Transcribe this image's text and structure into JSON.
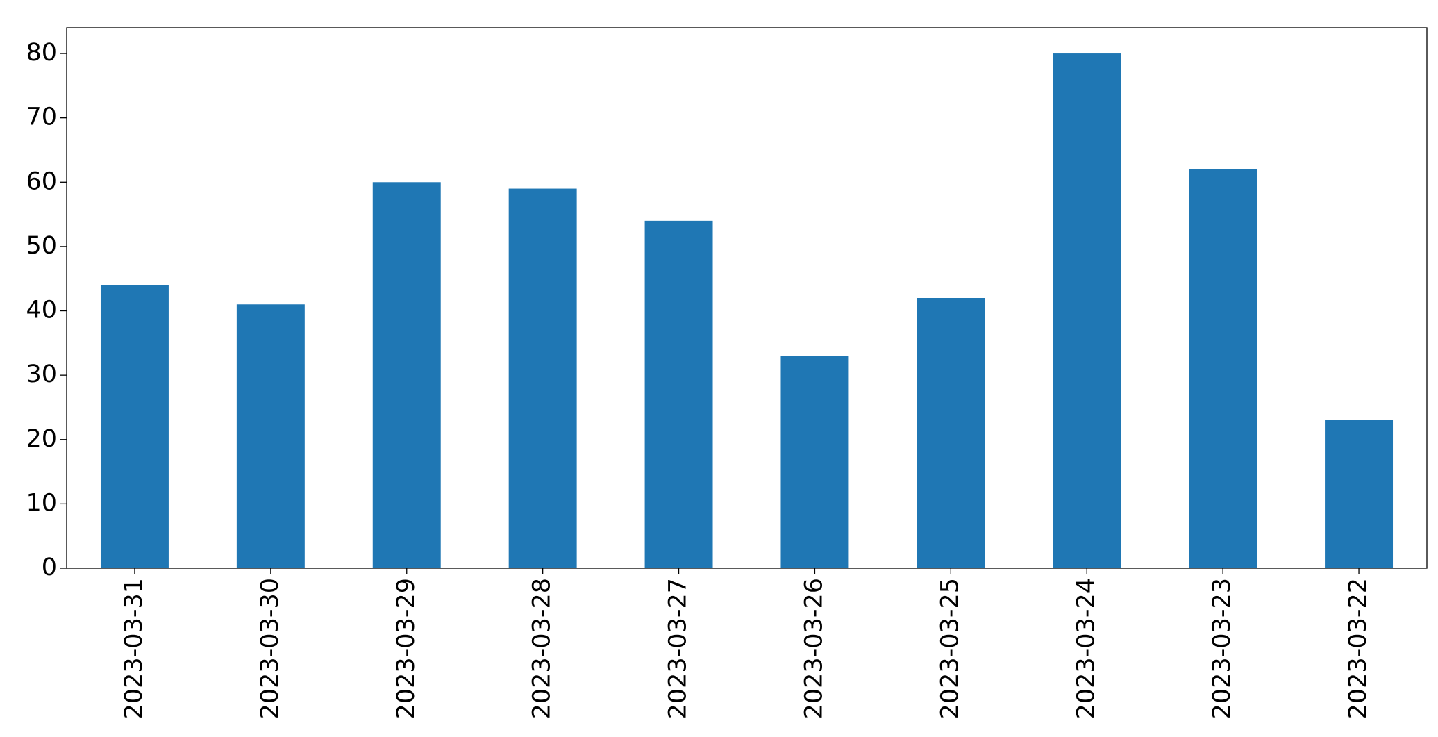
{
  "chart_data": {
    "type": "bar",
    "categories": [
      "2023-03-31",
      "2023-03-30",
      "2023-03-29",
      "2023-03-28",
      "2023-03-27",
      "2023-03-26",
      "2023-03-25",
      "2023-03-24",
      "2023-03-23",
      "2023-03-22"
    ],
    "values": [
      44,
      41,
      60,
      59,
      54,
      33,
      42,
      80,
      62,
      23
    ],
    "color": "#1f77b4",
    "ylim": [
      0,
      84
    ],
    "yticks": [
      0,
      10,
      20,
      30,
      40,
      50,
      60,
      70,
      80
    ],
    "grid": false
  }
}
